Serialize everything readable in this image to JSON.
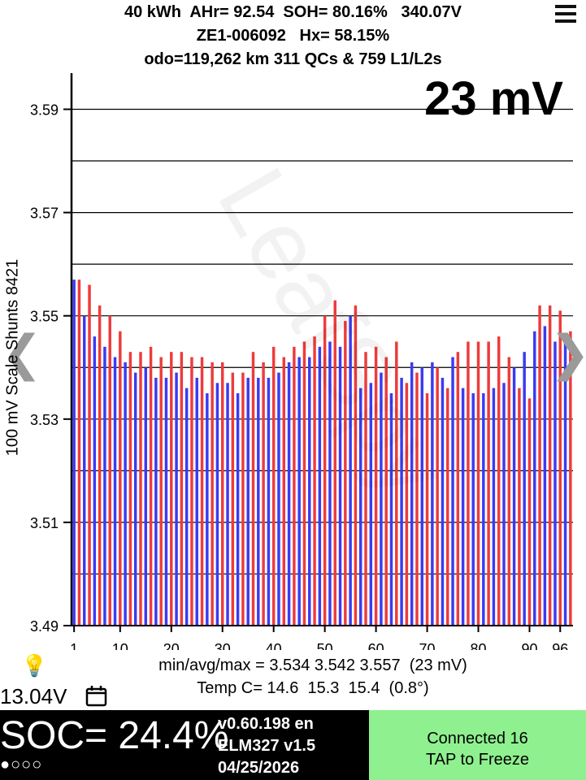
{
  "header": {
    "line1": "40 kWh  AHr= 92.54  SOH= 80.16%   340.07V",
    "line2": "ZE1-006092   Hx= 58.15%",
    "line3": "odo=119,262 km 311 QCs & 759 L1/L2s"
  },
  "spread_label": "23 mV",
  "nav": {
    "prev": "❮",
    "next": "❯"
  },
  "watermark": "LeafSpy",
  "chart_data": {
    "type": "bar",
    "title": "",
    "ylabel": "100 mV Scale  Shunts 8421",
    "ylim": [
      3.49,
      3.597
    ],
    "yticks": [
      3.49,
      3.51,
      3.53,
      3.55,
      3.57,
      3.59
    ],
    "ytick_labels": [
      "3.49",
      "3.51",
      "3.53",
      "3.55",
      "3.57",
      "3.59"
    ],
    "xtick_values": [
      1,
      10,
      20,
      30,
      40,
      50,
      60,
      70,
      80,
      90,
      96
    ],
    "xtick_labels": [
      "1",
      "10",
      "20",
      "30",
      "40",
      "50",
      "60",
      "70",
      "80",
      "90",
      "96"
    ],
    "series_colors": [
      "#3b3bf0",
      "#ee3b3b"
    ],
    "values": [
      3.557,
      3.557,
      3.55,
      3.556,
      3.546,
      3.552,
      3.544,
      3.55,
      3.542,
      3.547,
      3.541,
      3.543,
      3.539,
      3.543,
      3.54,
      3.544,
      3.538,
      3.542,
      3.538,
      3.543,
      3.539,
      3.543,
      3.536,
      3.542,
      3.538,
      3.542,
      3.535,
      3.541,
      3.537,
      3.541,
      3.537,
      3.539,
      3.535,
      3.539,
      3.538,
      3.543,
      3.538,
      3.541,
      3.538,
      3.544,
      3.539,
      3.542,
      3.541,
      3.544,
      3.542,
      3.545,
      3.542,
      3.546,
      3.544,
      3.55,
      3.545,
      3.553,
      3.544,
      3.549,
      3.55,
      3.552,
      3.536,
      3.543,
      3.537,
      3.544,
      3.539,
      3.542,
      3.535,
      3.545,
      3.538,
      3.537,
      3.541,
      3.539,
      3.54,
      3.535,
      3.541,
      3.54,
      3.538,
      3.536,
      3.542,
      3.543,
      3.536,
      3.545,
      3.535,
      3.545,
      3.535,
      3.545,
      3.536,
      3.546,
      3.537,
      3.542,
      3.54,
      3.536,
      3.543,
      3.534,
      3.547,
      3.552,
      3.548,
      3.552,
      3.545,
      3.551,
      3.545,
      3.547
    ]
  },
  "stats": {
    "minavgmax": "min/avg/max = 3.534 3.542 3.557  (23 mV)",
    "temp": "Temp C= 14.6  15.3  15.4  (0.8°)"
  },
  "aux_voltage": "13.04V",
  "soc": {
    "label": "SOC= 24.4%",
    "dots": "●○○○",
    "version": "v0.60.198 en",
    "adapter": "ELM327 v1.5",
    "date": "04/25/2026"
  },
  "status": {
    "connected": "Connected 16",
    "action": "TAP to Freeze"
  }
}
